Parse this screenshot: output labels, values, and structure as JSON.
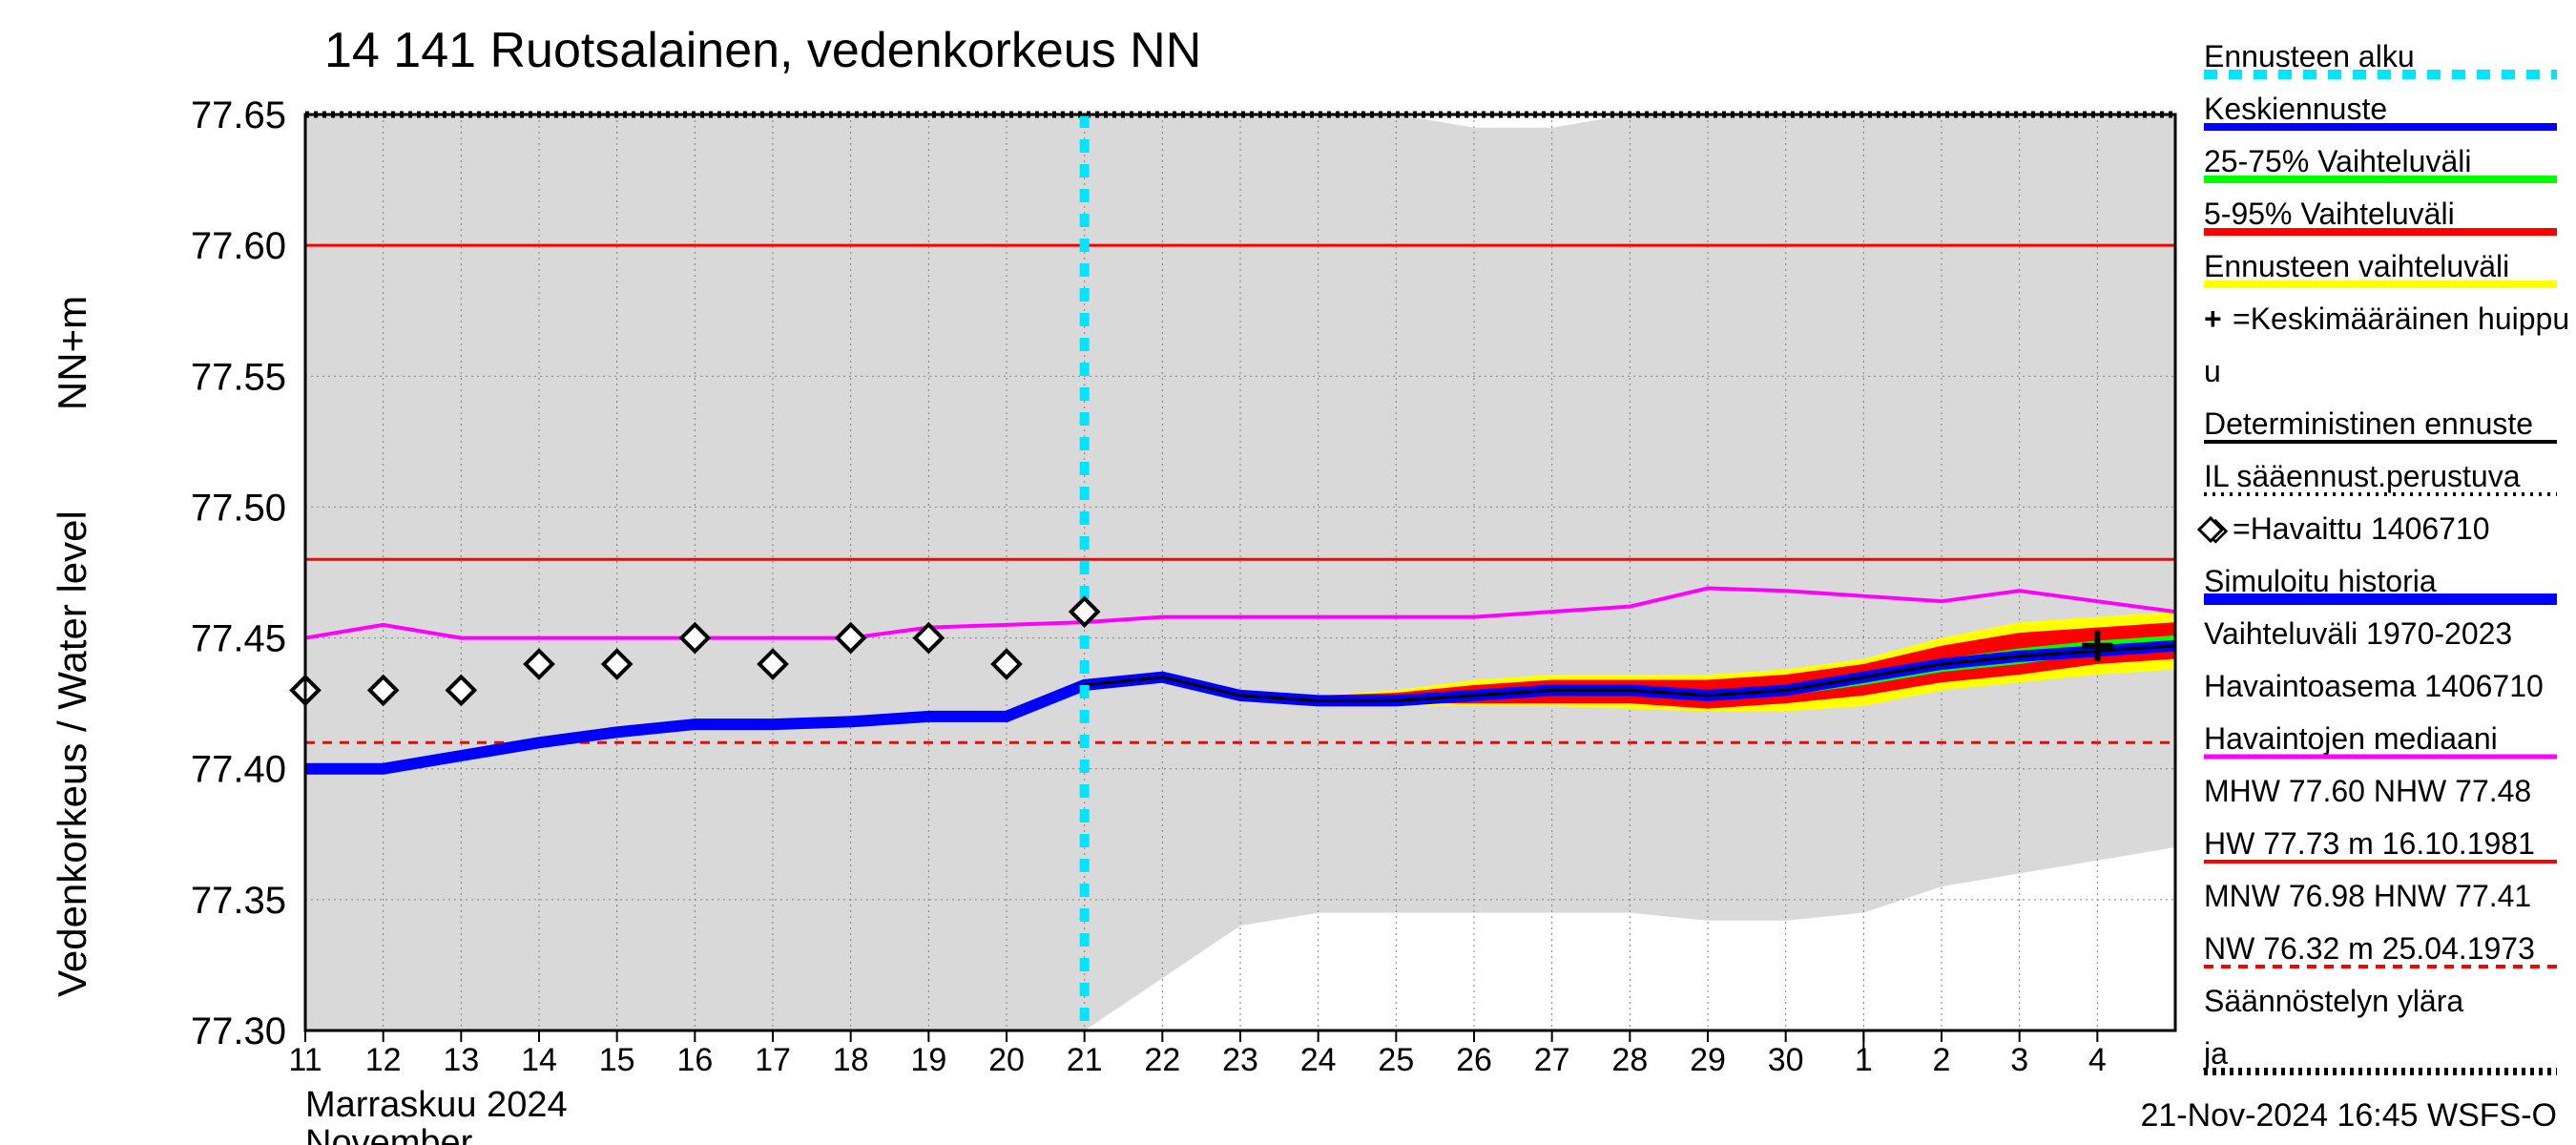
{
  "title": "14 141 Ruotsalainen, vedenkorkeus NN",
  "footer_timestamp": "21-Nov-2024 16:45 WSFS-O",
  "ylabel_line1": "Vedenkorkeus / Water level",
  "ylabel_line2": "NN+m",
  "month_label_fi": "Marraskuu 2024",
  "month_label_en": "November",
  "chart": {
    "type": "line",
    "background_color": "#ffffff",
    "plot_bg_filled": "#d9d9d9",
    "grid_color": "#808080",
    "grid_dash": "2,4",
    "axis_color": "#000000",
    "ylim": [
      77.3,
      77.65
    ],
    "yticks": [
      77.3,
      77.35,
      77.4,
      77.45,
      77.5,
      77.55,
      77.6,
      77.65
    ],
    "x_days": [
      11,
      12,
      13,
      14,
      15,
      16,
      17,
      18,
      19,
      20,
      21,
      22,
      23,
      24,
      25,
      26,
      27,
      28,
      29,
      30,
      1,
      2,
      3,
      4
    ],
    "x_last_index": 24,
    "forecast_start_index": 10,
    "month_boundary_index": 20,
    "range_band_upper": [
      77.65,
      77.65,
      77.65,
      77.65,
      77.65,
      77.65,
      77.65,
      77.65,
      77.65,
      77.65,
      77.65,
      77.65,
      77.65,
      77.65,
      77.65,
      77.645,
      77.645,
      77.65,
      77.65,
      77.65,
      77.65,
      77.65,
      77.65,
      77.65,
      77.65
    ],
    "range_band_lower": [
      77.3,
      77.3,
      77.3,
      77.3,
      77.3,
      77.3,
      77.3,
      77.3,
      77.3,
      77.3,
      77.3,
      77.32,
      77.34,
      77.345,
      77.345,
      77.345,
      77.345,
      77.345,
      77.342,
      77.342,
      77.345,
      77.355,
      77.36,
      77.365,
      77.37
    ],
    "simulate_history": [
      77.4,
      77.4,
      77.405,
      77.41,
      77.414,
      77.417,
      77.417,
      77.418,
      77.42,
      77.42,
      77.432,
      77.435,
      77.428,
      77.426,
      77.426,
      77.428,
      77.43,
      77.43,
      77.428,
      77.43,
      77.435,
      77.44,
      77.443,
      77.445,
      77.447
    ],
    "observations": [
      {
        "i": 0,
        "v": 77.43
      },
      {
        "i": 1,
        "v": 77.43
      },
      {
        "i": 2,
        "v": 77.43
      },
      {
        "i": 3,
        "v": 77.44
      },
      {
        "i": 4,
        "v": 77.44
      },
      {
        "i": 5,
        "v": 77.45
      },
      {
        "i": 6,
        "v": 77.44
      },
      {
        "i": 7,
        "v": 77.45
      },
      {
        "i": 8,
        "v": 77.45
      },
      {
        "i": 9,
        "v": 77.44
      },
      {
        "i": 10,
        "v": 77.46
      }
    ],
    "median_obs": [
      77.45,
      77.455,
      77.45,
      77.45,
      77.45,
      77.45,
      77.45,
      77.45,
      77.454,
      77.455,
      77.456,
      77.458,
      77.458,
      77.458,
      77.458,
      77.458,
      77.46,
      77.462,
      77.469,
      77.468,
      77.466,
      77.464,
      77.468,
      77.464,
      77.46
    ],
    "band_full_lower": [
      77.432,
      77.434,
      77.427,
      77.425,
      77.424,
      77.424,
      77.424,
      77.423,
      77.422,
      77.422,
      77.424,
      77.43,
      77.433,
      77.436,
      77.438
    ],
    "band_full_upper": [
      77.432,
      77.436,
      77.43,
      77.428,
      77.43,
      77.434,
      77.436,
      77.436,
      77.436,
      77.438,
      77.442,
      77.45,
      77.456,
      77.458,
      77.46
    ],
    "band_5_95_lower": [
      77.432,
      77.434,
      77.427,
      77.425,
      77.425,
      77.425,
      77.425,
      77.425,
      77.423,
      77.425,
      77.428,
      77.433,
      77.436,
      77.44,
      77.442
    ],
    "band_5_95_upper": [
      77.432,
      77.436,
      77.429,
      77.428,
      77.429,
      77.432,
      77.434,
      77.434,
      77.434,
      77.436,
      77.44,
      77.447,
      77.452,
      77.454,
      77.456
    ],
    "band_25_75_lower": [
      77.432,
      77.435,
      77.428,
      77.426,
      77.426,
      77.427,
      77.428,
      77.428,
      77.426,
      77.428,
      77.432,
      77.437,
      77.44,
      77.444,
      77.446
    ],
    "band_25_75_upper": [
      77.432,
      77.436,
      77.429,
      77.427,
      77.428,
      77.43,
      77.432,
      77.432,
      77.43,
      77.432,
      77.436,
      77.442,
      77.446,
      77.449,
      77.451
    ],
    "mean_forecast": [
      77.432,
      77.435,
      77.428,
      77.426,
      77.426,
      77.428,
      77.43,
      77.43,
      77.428,
      77.43,
      77.435,
      77.44,
      77.443,
      77.445,
      77.447
    ],
    "mean_peak": {
      "i": 23,
      "v": 77.447
    },
    "ref_lines": {
      "mhw": 77.6,
      "nhw": 77.48,
      "hnw": 77.41,
      "reg_upper": 77.65
    },
    "colors": {
      "gray_band": "#d9d9d9",
      "magenta": "#ff00ff",
      "blue": "#0000ff",
      "darkblue_sim": "#0000ff",
      "green": "#00ff00",
      "red": "#ff0000",
      "yellow": "#ffff00",
      "cyan": "#00e5ff",
      "black": "#000000"
    }
  },
  "legend": [
    {
      "label": "Ennusteen alku",
      "swatch": "cyan-dash"
    },
    {
      "label": "Keskiennuste",
      "swatch": "blue-underline"
    },
    {
      "label": "25-75% Vaihteluväli",
      "swatch": "green-underline"
    },
    {
      "label": "5-95% Vaihteluväli",
      "swatch": "red-underline"
    },
    {
      "label": "Ennusteen vaihteluväli",
      "swatch": "yellow-underline"
    },
    {
      "prefix": "+",
      "label": "=Keskimääräinen huippu",
      "swatch": "plus-underline"
    },
    {
      "cont": "u",
      "swatch": "none"
    },
    {
      "label": "Deterministinen ennuste",
      "swatch": "black-underline"
    },
    {
      "label": "IL sääennust.perustuva",
      "swatch": "black-dotted"
    },
    {
      "prefix": "◇",
      "label": "=Havaittu 1406710",
      "swatch": "diamond"
    },
    {
      "label": "Simuloitu historia",
      "swatch": "blue-thick-underline"
    },
    {
      "label": "Vaihteluväli 1970-2023",
      "swatch": "none"
    },
    {
      "label": " Havaintoasema 1406710",
      "swatch": "none"
    },
    {
      "label": "Havaintojen mediaani",
      "swatch": "magenta-underline"
    },
    {
      "label": "MHW  77.60 NHW  77.48",
      "swatch": "none"
    },
    {
      "label": "HW  77.73 m 16.10.1981",
      "swatch": "red-solid"
    },
    {
      "label": "MNW  76.98 HNW  77.41",
      "swatch": "none"
    },
    {
      "label": "NW  76.32 m 25.04.1973",
      "swatch": "red-dashed"
    },
    {
      "label": "Säännöstelyn ylära",
      "swatch": "none"
    },
    {
      "label": "ja",
      "swatch": "black-dotted-thick"
    }
  ]
}
